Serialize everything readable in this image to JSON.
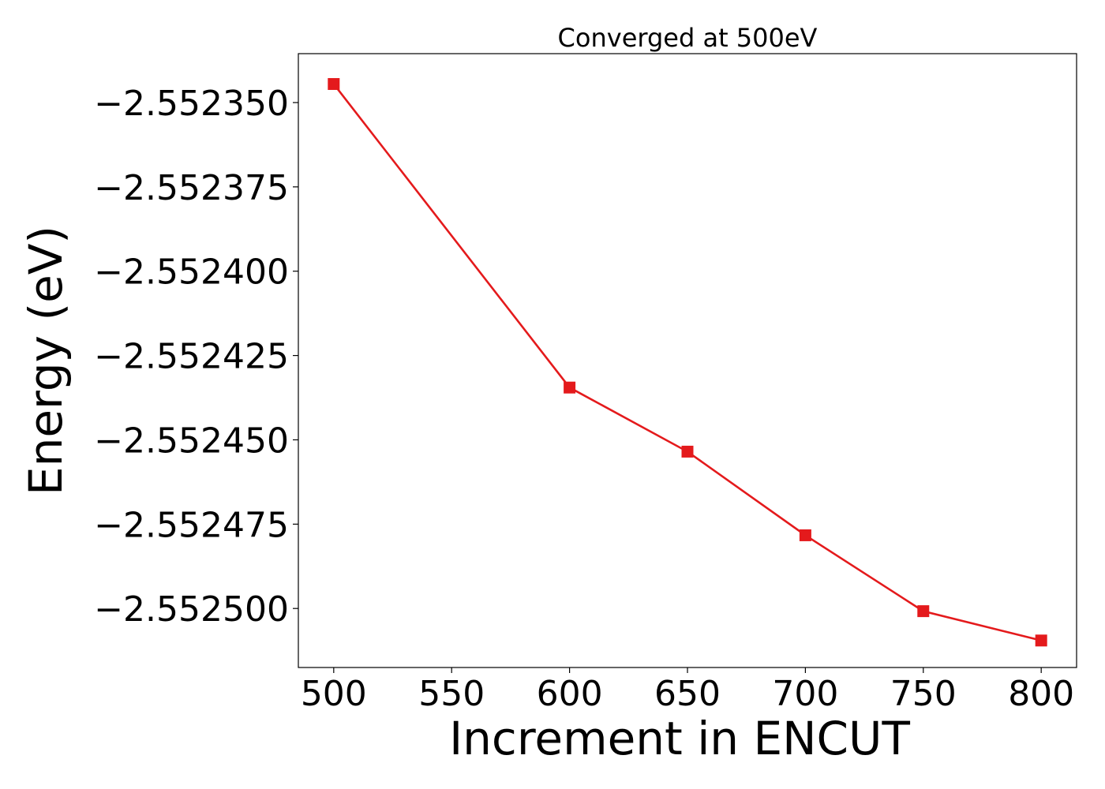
{
  "chart_data": {
    "type": "line",
    "title": "Converged at 500eV",
    "xlabel": "Increment in ENCUT",
    "ylabel": "Energy (eV)",
    "x": [
      500,
      600,
      650,
      700,
      750,
      800
    ],
    "series": [
      {
        "values": [
          -2.5523445,
          -2.5524345,
          -2.5524535,
          -2.5524783,
          -2.5525008,
          -2.5525095
        ],
        "color": "#e41a1c",
        "marker": "square"
      }
    ],
    "xticks": [
      500,
      550,
      600,
      650,
      700,
      750,
      800
    ],
    "xtick_labels": [
      "500",
      "550",
      "600",
      "650",
      "700",
      "750",
      "800"
    ],
    "yticks": [
      -2.55235,
      -2.552375,
      -2.5524,
      -2.552425,
      -2.55245,
      -2.552475,
      -2.5525
    ],
    "ytick_labels": [
      "−2.552350",
      "−2.552375",
      "−2.552400",
      "−2.552425",
      "−2.552450",
      "−2.552475",
      "−2.552500"
    ],
    "xlim": [
      485,
      815
    ],
    "ylim": [
      -2.5525175,
      -2.5523355
    ],
    "grid": false,
    "legend": "none"
  }
}
